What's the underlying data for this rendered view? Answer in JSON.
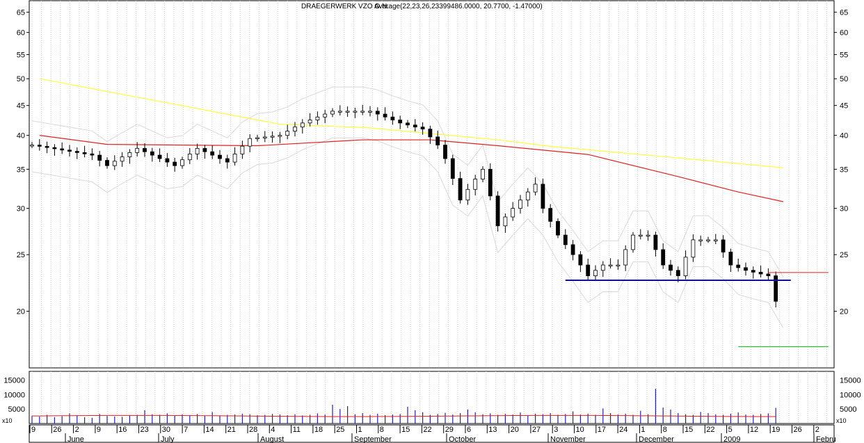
{
  "chart_data": {
    "type": "candlestick",
    "title": "DRAEGERWERK VZO O.N.",
    "overlay_text": "Average(22,23,26,23399486.0000, 20.7700, -1.47000)",
    "price_axis": {
      "scale": "log",
      "ticks": [
        20,
        25,
        30,
        35,
        40,
        45,
        50,
        55,
        60,
        65
      ],
      "tick_labels": [
        "20",
        "25",
        "30",
        "35",
        "40",
        "45",
        "50",
        "55",
        "60",
        "65"
      ],
      "range": [
        16,
        68
      ]
    },
    "volume_axis": {
      "ticks": [
        5000,
        10000,
        15000
      ],
      "tick_labels": [
        "5000",
        "10000",
        "15000"
      ],
      "range": [
        0,
        18000
      ],
      "unit_label": "x10"
    },
    "x_axis": {
      "day_labels": [
        "9",
        "26",
        "2",
        "9",
        "16",
        "23",
        "30",
        "7",
        "14",
        "21",
        "28",
        "4",
        "11",
        "18",
        "25",
        "1",
        "8",
        "15",
        "22",
        "29",
        "6",
        "13",
        "20",
        "27",
        "3",
        "10",
        "17",
        "24",
        "1",
        "8",
        "15",
        "22",
        "5",
        "12",
        "19",
        "26",
        "2"
      ],
      "month_labels": [
        "June",
        "July",
        "August",
        "September",
        "October",
        "November",
        "December",
        "2009",
        "Febru"
      ]
    },
    "moving_averages": [
      {
        "color": "#ffff40",
        "points": [
          [
            1,
            50
          ],
          [
            33,
            41.8
          ],
          [
            45,
            41.2
          ],
          [
            62,
            39.3
          ],
          [
            69,
            38.3
          ],
          [
            86,
            36.6
          ],
          [
            100,
            35.2
          ]
        ]
      },
      {
        "color": "#dd2222",
        "points": [
          [
            1,
            40
          ],
          [
            10,
            38.6
          ],
          [
            30,
            38.4
          ],
          [
            44,
            39.3
          ],
          [
            53,
            39.3
          ],
          [
            62,
            38.4
          ],
          [
            74,
            37.1
          ],
          [
            86,
            34.0
          ],
          [
            94,
            32.0
          ],
          [
            100,
            30.8
          ]
        ]
      }
    ],
    "horizontal_lines": [
      {
        "color": "#1010a0",
        "from": 71,
        "to": 101,
        "price": 22.6
      },
      {
        "color": "#dd2222",
        "from": 98,
        "to": 106,
        "price": 23.3
      },
      {
        "color": "#00bb00",
        "from": 94,
        "to": 106,
        "price": 17.4
      }
    ],
    "price_points": [
      [
        0,
        38.5
      ],
      [
        8,
        37.0
      ],
      [
        10,
        35.5
      ],
      [
        14,
        38.0
      ],
      [
        19,
        35.5
      ],
      [
        22,
        38.0
      ],
      [
        26,
        36.0
      ],
      [
        29,
        39.5
      ],
      [
        33,
        40.0
      ],
      [
        36,
        42.0
      ],
      [
        40,
        44.0
      ],
      [
        45,
        44.0
      ],
      [
        49,
        42.0
      ],
      [
        52,
        41.0
      ],
      [
        54,
        38.5
      ],
      [
        55,
        36.5
      ],
      [
        57,
        31.0
      ],
      [
        60,
        35.0
      ],
      [
        62,
        28.0
      ],
      [
        65,
        31.0
      ],
      [
        67,
        33.0
      ],
      [
        68,
        30.0
      ],
      [
        70,
        27.0
      ],
      [
        72,
        25.0
      ],
      [
        74,
        23.0
      ],
      [
        76,
        24.0
      ],
      [
        78,
        24.0
      ],
      [
        80,
        27.0
      ],
      [
        82,
        27.0
      ],
      [
        84,
        24.0
      ],
      [
        86,
        23.0
      ],
      [
        88,
        26.5
      ],
      [
        91,
        26.5
      ],
      [
        93,
        24.0
      ],
      [
        95,
        23.5
      ],
      [
        98,
        23.0
      ],
      [
        99,
        20.8
      ]
    ],
    "volume_values": [
      2.6,
      2.4,
      3.0,
      2.2,
      2.5,
      3.5,
      2.8,
      2.2,
      2.0,
      3.3,
      2.6,
      2.4,
      2.3,
      2.8,
      3.0,
      4.6,
      3.2,
      3.0,
      3.5,
      2.8,
      3.2,
      2.9,
      3.3,
      2.7,
      4.0,
      2.8,
      3.0,
      3.1,
      3.4,
      3.2,
      2.9,
      3.0,
      3.3,
      3.1,
      2.9,
      3.2,
      2.8,
      3.0,
      3.5,
      3.1,
      6.5,
      5.0,
      6.0,
      3.2,
      3.6,
      3.0,
      3.4,
      2.9,
      3.1,
      3.3,
      5.8,
      4.6,
      3.9,
      3.0,
      3.3,
      3.7,
      3.1,
      3.6,
      4.8,
      3.9,
      3.2,
      3.5,
      3.0,
      3.3,
      3.1,
      3.8,
      2.9,
      3.4,
      3.2,
      3.6,
      3.0,
      3.3,
      4.2,
      3.1,
      3.4,
      3.0,
      5.2,
      3.6,
      3.1,
      3.4,
      3.0,
      4.4,
      3.2,
      12.0,
      5.5,
      4.8,
      3.6,
      3.2,
      3.0,
      4.0,
      3.6,
      3.2,
      3.0,
      3.4,
      3.8,
      3.1,
      3.0,
      3.3,
      3.5,
      5.4
    ]
  }
}
